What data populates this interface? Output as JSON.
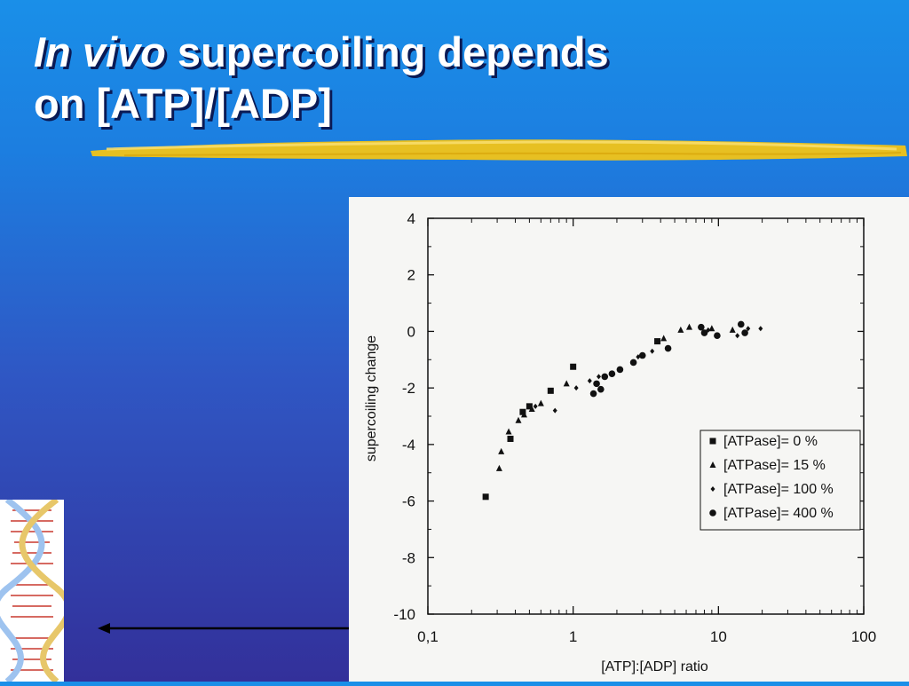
{
  "slide": {
    "title_italic": "In vivo",
    "title_rest": " supercoiling depends",
    "title_line2": "on [ATP]/[ADP]"
  },
  "colors": {
    "title_text": "#ffffff",
    "brush_stroke": "#f2c417",
    "background_top": "#1a8fe8",
    "background_bottom": "#33309a"
  },
  "icons": {
    "dna": "dna-helix-icon",
    "arrow": "left-arrow-icon"
  },
  "chart_data": {
    "type": "scatter",
    "xlabel": "[ATP]:[ADP] ratio",
    "ylabel": "supercoiling change",
    "xscale": "log",
    "xlim": [
      0.1,
      100
    ],
    "ylim": [
      -10,
      4
    ],
    "xticks": [
      0.1,
      1,
      10,
      100
    ],
    "xtick_labels": [
      "0,1",
      "1",
      "10",
      "100"
    ],
    "yticks": [
      4,
      2,
      0,
      -2,
      -4,
      -6,
      -8,
      -10
    ],
    "ytick_labels": [
      "4",
      "2",
      "0",
      "-2",
      "-4",
      "-6",
      "-8",
      "-10"
    ],
    "grid": false,
    "legend_position": "bottom-right",
    "series": [
      {
        "name": "[ATPase]= 0 %",
        "marker": "square",
        "points": [
          [
            0.25,
            -5.85
          ],
          [
            0.37,
            -3.8
          ],
          [
            0.45,
            -2.85
          ],
          [
            0.5,
            -2.65
          ],
          [
            0.7,
            -2.1
          ],
          [
            1.0,
            -1.25
          ],
          [
            3.8,
            -0.35
          ]
        ]
      },
      {
        "name": "[ATPase]= 15 %",
        "marker": "triangle",
        "points": [
          [
            0.31,
            -4.85
          ],
          [
            0.32,
            -4.25
          ],
          [
            0.36,
            -3.55
          ],
          [
            0.42,
            -3.15
          ],
          [
            0.46,
            -2.95
          ],
          [
            0.52,
            -2.75
          ],
          [
            0.6,
            -2.55
          ],
          [
            0.9,
            -1.85
          ],
          [
            4.2,
            -0.25
          ],
          [
            5.5,
            0.05
          ],
          [
            6.3,
            0.15
          ],
          [
            9.0,
            0.1
          ],
          [
            12.5,
            0.05
          ]
        ]
      },
      {
        "name": "[ATPase]= 100 %",
        "marker": "diamond",
        "points": [
          [
            0.55,
            -2.65
          ],
          [
            0.75,
            -2.8
          ],
          [
            1.05,
            -2.0
          ],
          [
            1.3,
            -1.75
          ],
          [
            1.5,
            -1.6
          ],
          [
            2.8,
            -0.9
          ],
          [
            3.5,
            -0.7
          ],
          [
            8.5,
            0.05
          ],
          [
            13.5,
            -0.15
          ],
          [
            16.0,
            0.1
          ],
          [
            19.5,
            0.1
          ]
        ]
      },
      {
        "name": "[ATPase]= 400 %",
        "marker": "circle",
        "points": [
          [
            1.38,
            -2.2
          ],
          [
            1.45,
            -1.85
          ],
          [
            1.55,
            -2.05
          ],
          [
            1.65,
            -1.6
          ],
          [
            1.85,
            -1.5
          ],
          [
            2.1,
            -1.35
          ],
          [
            2.6,
            -1.1
          ],
          [
            3.0,
            -0.85
          ],
          [
            4.5,
            -0.6
          ],
          [
            7.6,
            0.15
          ],
          [
            8.0,
            -0.05
          ],
          [
            9.8,
            -0.15
          ],
          [
            14.3,
            0.25
          ],
          [
            15.2,
            -0.05
          ]
        ]
      }
    ]
  }
}
